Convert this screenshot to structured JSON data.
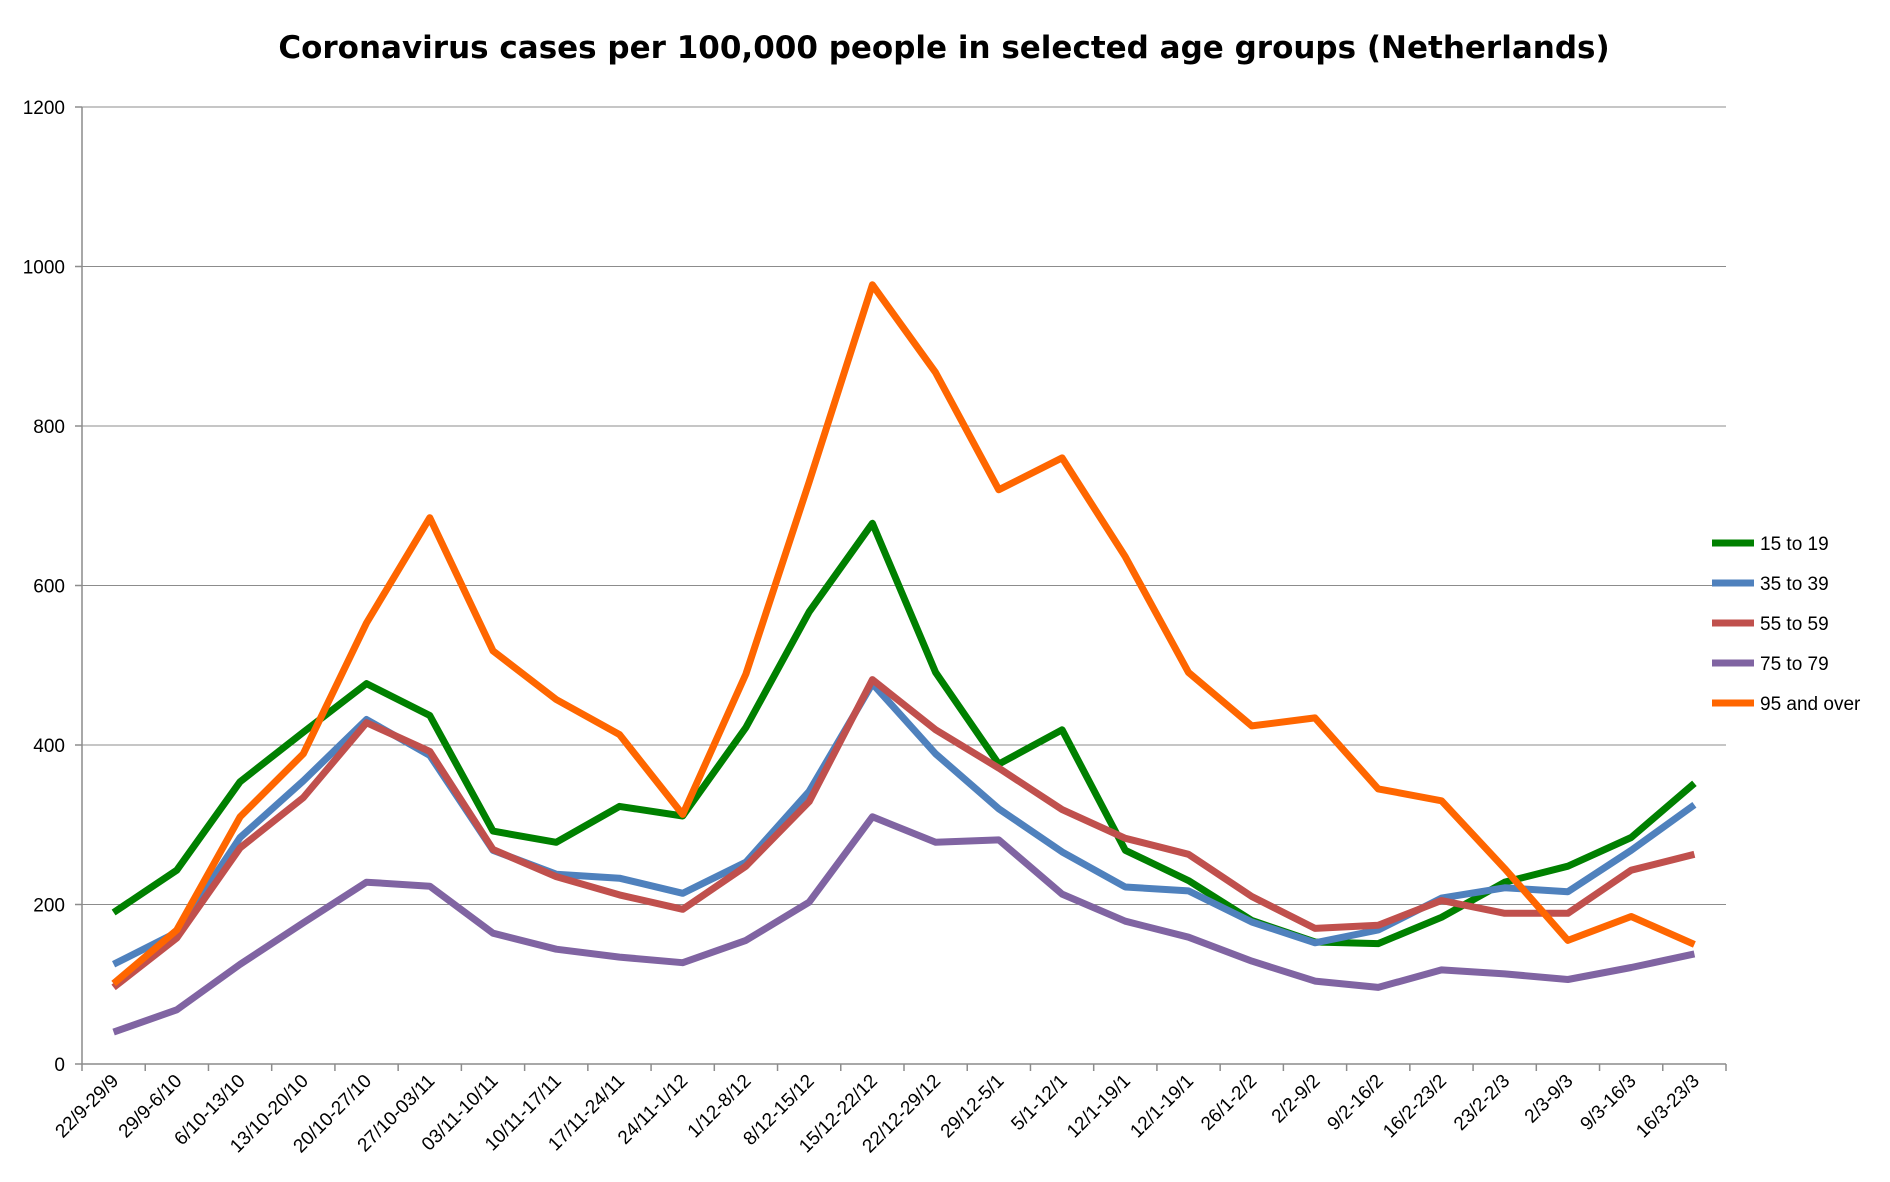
{
  "chart_data": {
    "type": "line",
    "title": "Coronavirus cases per 100,000 people in selected age groups (Netherlands)",
    "xlabel": "",
    "ylabel": "",
    "ylim": [
      0,
      1200
    ],
    "yticks": [
      0,
      200,
      400,
      600,
      800,
      1000,
      1200
    ],
    "grid": true,
    "legend_position": "right",
    "categories": [
      "22/9-29/9",
      "29/9-6/10",
      "6/10-13/10",
      "13/10-20/10",
      "20/10-27/10",
      "27/10-03/11",
      "03/11-10/11",
      "10/11-17/11",
      "17/11-24/11",
      "24/11-1/12",
      "1/12-8/12",
      "8/12-15/12",
      "15/12-22/12",
      "22/12-29/12",
      "29/12-5/1",
      "5/1-12/1",
      "12/1-19/1",
      "12/1-19/1",
      "26/1-2/2",
      "2/2-9/2",
      "9/2-16/2",
      "16/2-23/2",
      "23/2-2/3",
      "2/3-9/3",
      "9/3-16/3",
      "16/3-23/3"
    ],
    "series": [
      {
        "name": "15 to 19",
        "color": "#008000",
        "values": [
          190,
          243,
          354,
          416,
          477,
          437,
          292,
          278,
          323,
          311,
          422,
          567,
          678,
          491,
          376,
          419,
          268,
          230,
          180,
          153,
          151,
          184,
          228,
          248,
          284,
          352
        ]
      },
      {
        "name": "35 to 39",
        "color": "#4f81bd",
        "values": [
          125,
          165,
          284,
          355,
          432,
          387,
          268,
          238,
          233,
          214,
          253,
          342,
          477,
          389,
          320,
          266,
          222,
          217,
          178,
          152,
          168,
          208,
          221,
          216,
          268,
          325
        ]
      },
      {
        "name": "55 to 59",
        "color": "#c0504d",
        "values": [
          96,
          158,
          271,
          334,
          428,
          392,
          269,
          235,
          212,
          194,
          248,
          329,
          482,
          419,
          371,
          319,
          283,
          263,
          210,
          170,
          174,
          205,
          189,
          189,
          243,
          263
        ]
      },
      {
        "name": "75 to 79",
        "color": "#8064a2",
        "values": [
          40,
          68,
          125,
          177,
          228,
          223,
          164,
          144,
          134,
          127,
          155,
          203,
          310,
          278,
          281,
          213,
          179,
          159,
          129,
          104,
          96,
          118,
          113,
          106,
          121,
          138
        ]
      },
      {
        "name": "95 and over",
        "color": "#ff6600",
        "values": [
          101,
          168,
          310,
          389,
          553,
          685,
          518,
          457,
          413,
          313,
          489,
          730,
          977,
          867,
          720,
          760,
          636,
          491,
          424,
          434,
          345,
          330,
          245,
          155,
          185,
          150
        ]
      }
    ]
  }
}
